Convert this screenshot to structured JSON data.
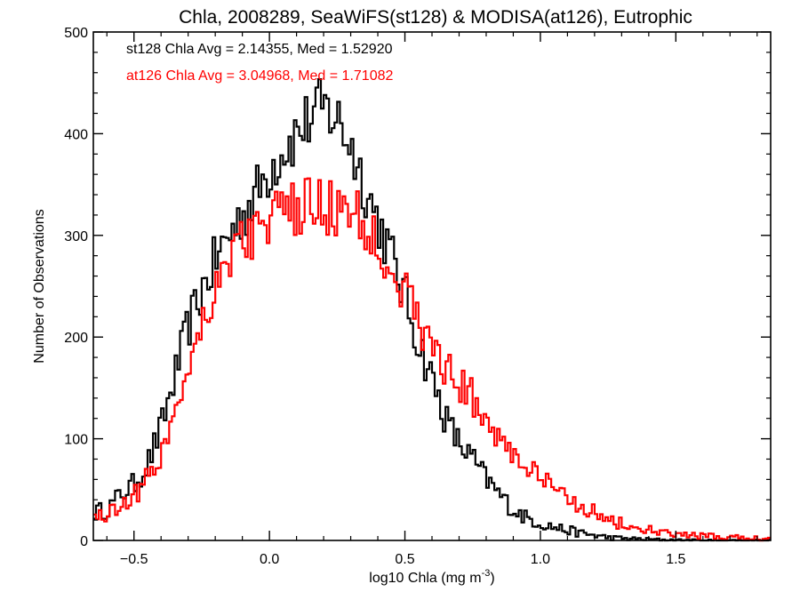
{
  "chart_data": {
    "type": "line",
    "title": "Chla, 2008289, SeaWiFS(st128) & MODISA(at126), Eutrophic",
    "xlabel_main": "log10 Chla (mg m",
    "xlabel_sup": "-3",
    "xlabel_close": ")",
    "ylabel": "Number of Observations",
    "xlim": [
      -0.65,
      1.85
    ],
    "ylim": [
      0,
      500
    ],
    "x_ticks": [
      -0.5,
      0.0,
      0.5,
      1.0,
      1.5
    ],
    "x_tick_labels": [
      "−0.5",
      "0.0",
      "0.5",
      "1.0",
      "1.5"
    ],
    "y_ticks": [
      0,
      100,
      200,
      300,
      400,
      500
    ],
    "y_tick_labels": [
      "0",
      "100",
      "200",
      "300",
      "400",
      "500"
    ],
    "bin_width": 0.01,
    "bin_start": -0.65,
    "series": [
      {
        "name": "st128",
        "color": "#000000",
        "stat_label": "st128 Chla Avg = 2.14355, Med = 1.52920",
        "profile": [
          [
            -0.65,
            28
          ],
          [
            -0.6,
            30
          ],
          [
            -0.55,
            45
          ],
          [
            -0.5,
            55
          ],
          [
            -0.45,
            75
          ],
          [
            -0.4,
            110
          ],
          [
            -0.35,
            160
          ],
          [
            -0.3,
            210
          ],
          [
            -0.25,
            245
          ],
          [
            -0.2,
            275
          ],
          [
            -0.15,
            300
          ],
          [
            -0.1,
            320
          ],
          [
            -0.05,
            340
          ],
          [
            0.0,
            365
          ],
          [
            0.05,
            385
          ],
          [
            0.1,
            400
          ],
          [
            0.15,
            415
          ],
          [
            0.2,
            425
          ],
          [
            0.25,
            415
          ],
          [
            0.3,
            390
          ],
          [
            0.35,
            350
          ],
          [
            0.4,
            315
          ],
          [
            0.45,
            280
          ],
          [
            0.5,
            240
          ],
          [
            0.55,
            195
          ],
          [
            0.6,
            160
          ],
          [
            0.65,
            120
          ],
          [
            0.7,
            95
          ],
          [
            0.75,
            80
          ],
          [
            0.8,
            60
          ],
          [
            0.85,
            45
          ],
          [
            0.9,
            30
          ],
          [
            0.95,
            22
          ],
          [
            1.0,
            17
          ],
          [
            1.05,
            13
          ],
          [
            1.1,
            10
          ],
          [
            1.15,
            7
          ],
          [
            1.2,
            5
          ],
          [
            1.25,
            3
          ],
          [
            1.3,
            2
          ],
          [
            1.4,
            1
          ],
          [
            1.6,
            0
          ],
          [
            1.85,
            0
          ]
        ]
      },
      {
        "name": "at126",
        "color": "#ff0000",
        "stat_label": "at126 Chla Avg = 3.04968, Med = 1.71082",
        "profile": [
          [
            -0.65,
            25
          ],
          [
            -0.6,
            25
          ],
          [
            -0.55,
            35
          ],
          [
            -0.5,
            45
          ],
          [
            -0.45,
            60
          ],
          [
            -0.4,
            85
          ],
          [
            -0.35,
            125
          ],
          [
            -0.3,
            175
          ],
          [
            -0.25,
            215
          ],
          [
            -0.2,
            250
          ],
          [
            -0.15,
            280
          ],
          [
            -0.1,
            295
          ],
          [
            -0.05,
            305
          ],
          [
            0.0,
            315
          ],
          [
            0.05,
            320
          ],
          [
            0.1,
            325
          ],
          [
            0.15,
            330
          ],
          [
            0.2,
            330
          ],
          [
            0.25,
            325
          ],
          [
            0.3,
            320
          ],
          [
            0.35,
            310
          ],
          [
            0.4,
            295
          ],
          [
            0.45,
            270
          ],
          [
            0.5,
            245
          ],
          [
            0.55,
            215
          ],
          [
            0.6,
            190
          ],
          [
            0.65,
            170
          ],
          [
            0.7,
            155
          ],
          [
            0.75,
            140
          ],
          [
            0.8,
            120
          ],
          [
            0.85,
            100
          ],
          [
            0.9,
            85
          ],
          [
            0.95,
            72
          ],
          [
            1.0,
            60
          ],
          [
            1.05,
            50
          ],
          [
            1.1,
            42
          ],
          [
            1.15,
            35
          ],
          [
            1.2,
            28
          ],
          [
            1.25,
            20
          ],
          [
            1.3,
            16
          ],
          [
            1.35,
            12
          ],
          [
            1.4,
            10
          ],
          [
            1.45,
            7
          ],
          [
            1.5,
            6
          ],
          [
            1.6,
            4
          ],
          [
            1.7,
            3
          ],
          [
            1.8,
            2
          ],
          [
            1.85,
            2
          ]
        ]
      }
    ]
  }
}
